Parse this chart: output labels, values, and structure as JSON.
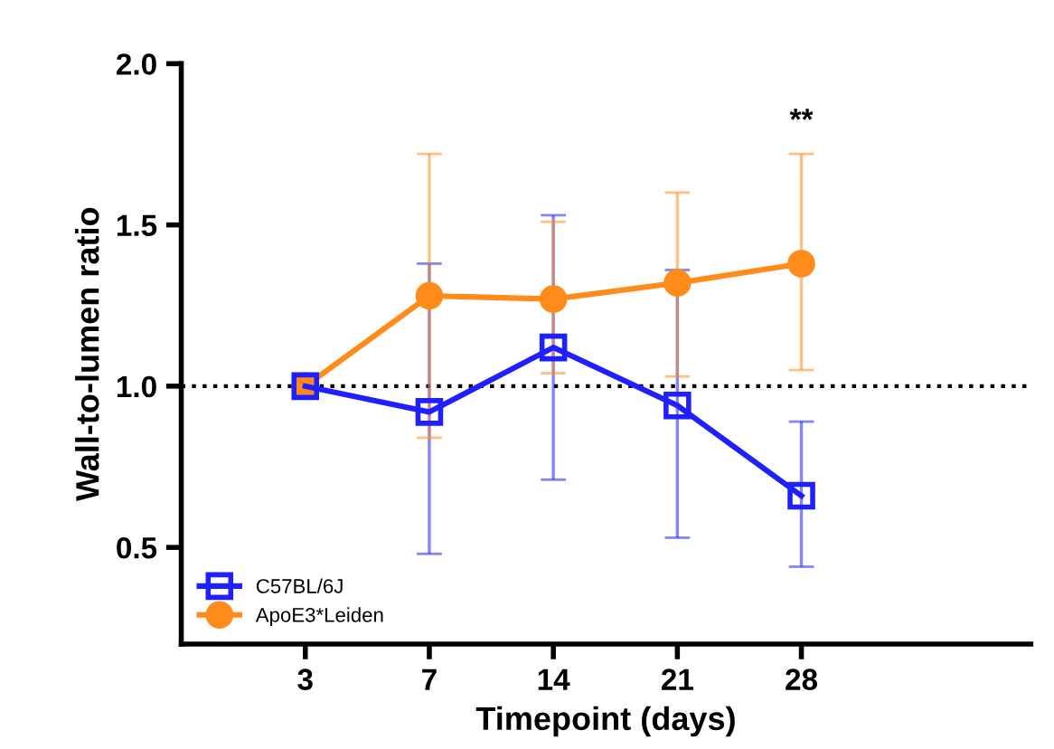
{
  "chart_data": {
    "type": "line",
    "xlabel": "Timepoint (days)",
    "ylabel": "Wall-to-lumen ratio",
    "categories": [
      "3",
      "7",
      "14",
      "21",
      "28"
    ],
    "series": [
      {
        "name": "C57BL/6J",
        "color": "#1f1fff",
        "marker": "square",
        "values": [
          1.0,
          0.92,
          1.12,
          0.94,
          0.66
        ],
        "errors": [
          null,
          [
            0.48,
            1.38
          ],
          [
            0.71,
            1.53
          ],
          [
            0.53,
            1.36
          ],
          [
            0.44,
            0.89
          ]
        ]
      },
      {
        "name": "ApoE3*Leiden",
        "color": "#ff8c1a",
        "marker": "circle",
        "values": [
          1.0,
          1.28,
          1.27,
          1.32,
          1.38
        ],
        "errors": [
          null,
          [
            0.84,
            1.72
          ],
          [
            1.04,
            1.51
          ],
          [
            1.03,
            1.6
          ],
          [
            1.05,
            1.72
          ]
        ]
      }
    ],
    "ylim": [
      0.2,
      2.0
    ],
    "yticks": [
      {
        "value": 0.5,
        "label": "0.5"
      },
      {
        "value": 1.0,
        "label": "1.0"
      },
      {
        "value": 1.5,
        "label": "1.5"
      },
      {
        "value": 2.0,
        "label": "2.0"
      }
    ],
    "ref_lines": [
      {
        "axis": "y",
        "value": 1.0,
        "color": "#000000",
        "line_style": "dotted"
      }
    ],
    "annotations": [
      "**"
    ],
    "legend": "bottom left",
    "grid": false
  }
}
